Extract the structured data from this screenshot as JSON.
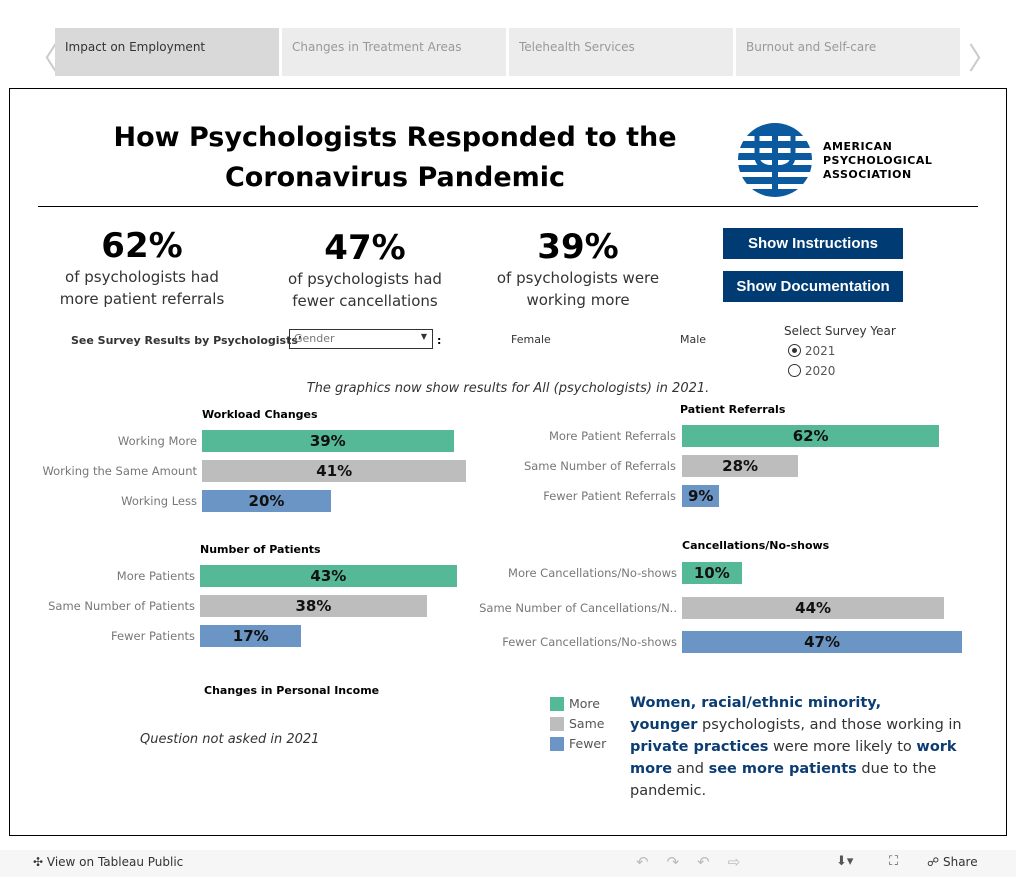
{
  "tabs": [
    {
      "label": "Impact on Employment",
      "active": true
    },
    {
      "label": "Changes in Treatment Areas"
    },
    {
      "label": "Telehealth Services"
    },
    {
      "label": "Burnout and Self-care"
    }
  ],
  "header": {
    "title_line1": "How Psychologists Responded to the",
    "title_line2": "Coronavirus Pandemic",
    "logo": {
      "line1": "AMERICAN",
      "line2": "PSYCHOLOGICAL",
      "line3": "ASSOCIATION"
    }
  },
  "kpis": [
    {
      "value": "62%",
      "line1": "of psychologists had",
      "line2": "more patient referrals"
    },
    {
      "value": "47%",
      "line1": "of psychologists had",
      "line2": "fewer cancellations"
    },
    {
      "value": "39%",
      "line1": "of psychologists were",
      "line2": "working more"
    }
  ],
  "buttons": {
    "instructions": "Show Instructions",
    "documentation": "Show Documentation"
  },
  "filter": {
    "label": "See Survey Results by Psychologists’",
    "selected": "Gender",
    "colon": ":",
    "option1": "Female",
    "option2": "Male"
  },
  "year": {
    "label": "Select Survey Year",
    "options": [
      "2021",
      "2020"
    ],
    "selected": "2021"
  },
  "note": "The graphics now show results for All (psychologists) in 2021.",
  "colors": {
    "more": "#55b897",
    "same": "#bdbdbd",
    "fewer": "#6a95c4",
    "navy": "#003b73"
  },
  "chart_data": [
    {
      "type": "bar",
      "title": "Workload Changes",
      "categories": [
        "Working More",
        "Working the Same Amount",
        "Working Less"
      ],
      "values": [
        39,
        41,
        20
      ],
      "labels": [
        "39%",
        "41%",
        "20%"
      ]
    },
    {
      "type": "bar",
      "title": "Patient Referrals",
      "categories": [
        "More Patient Referrals",
        "Same Number of Referrals",
        "Fewer Patient Referrals"
      ],
      "values": [
        62,
        28,
        9
      ],
      "labels": [
        "62%",
        "28%",
        "9%"
      ]
    },
    {
      "type": "bar",
      "title": "Number of Patients",
      "categories": [
        "More Patients",
        "Same Number of Patients",
        "Fewer Patients"
      ],
      "values": [
        43,
        38,
        17
      ],
      "labels": [
        "43%",
        "38%",
        "17%"
      ]
    },
    {
      "type": "bar",
      "title": "Cancellations/No-shows",
      "categories": [
        "More Cancellations/No-shows",
        "Same Number of Cancellations/N..",
        "Fewer Cancellations/No-shows"
      ],
      "values": [
        10,
        44,
        47
      ],
      "labels": [
        "10%",
        "44%",
        "47%"
      ]
    }
  ],
  "income": {
    "title": "Changes in Personal Income",
    "note": "Question not asked in 2021"
  },
  "legend": [
    "More",
    "Same",
    "Fewer"
  ],
  "blurb": {
    "p1": "Women, racial/ethnic minority,",
    "p2": "younger",
    "p3": " psychologists, and those working in",
    "p4": "private practices",
    "p5": " were more likely to ",
    "p6": "work",
    "p7": "more",
    "p8": " and ",
    "p9": "see more patients",
    "p10": " due to the pandemic."
  },
  "footer": {
    "view": "View on Tableau Public",
    "share": "Share"
  }
}
